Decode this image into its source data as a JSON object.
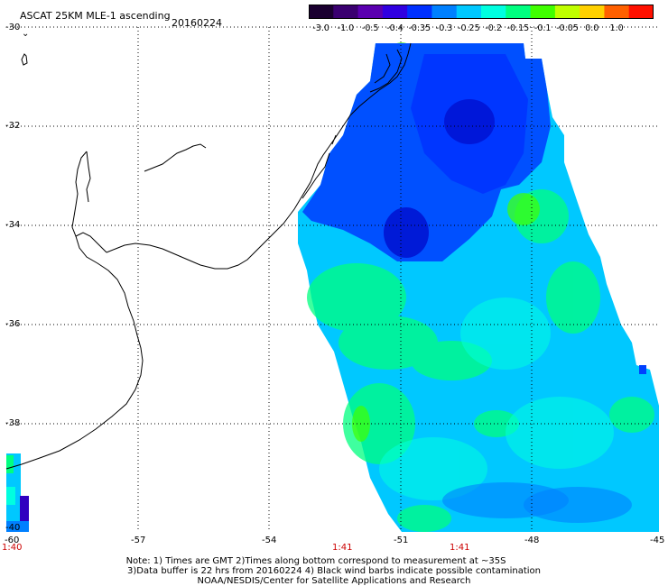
{
  "title": "ASCAT 25KM MLE-1 ascending",
  "date": "20160224",
  "colorbar": {
    "ticks": [
      "-3.0",
      "-1.0",
      "-0.5",
      "-0.4",
      "-0.35",
      "-0.3",
      "-0.25",
      "-0.2",
      "-0.15",
      "-0.1",
      "-0.05",
      "0.0",
      "1.0"
    ],
    "colors": [
      "#1a0030",
      "#3a0070",
      "#5a00b0",
      "#3000e0",
      "#0030ff",
      "#0080ff",
      "#00c8ff",
      "#00ffe0",
      "#00ff80",
      "#40ff00",
      "#c0ff00",
      "#ffd000",
      "#ff6000",
      "#ff1000"
    ]
  },
  "lat_labels": [
    "-30",
    "-32",
    "-34",
    "-36",
    "-38",
    "-40"
  ],
  "lon_labels": [
    "-60",
    "-57",
    "-54",
    "-51",
    "-48",
    "-45"
  ],
  "time_labels": [
    "1:40",
    "1:41",
    "1:41"
  ],
  "north_marker": "⌄",
  "notes": [
    "Note: 1) Times are GMT 2)Times along bottom correspond to measurement at ~35S",
    "3)Data buffer is 22 hrs from 20160224 4) Black wind barbs indicate possible contamination",
    "NOAA/NESDIS/Center for Satellite Applications and Research"
  ],
  "colors": {
    "coast": "#000000",
    "grid": "#000000",
    "time_red": "#cc0000"
  }
}
